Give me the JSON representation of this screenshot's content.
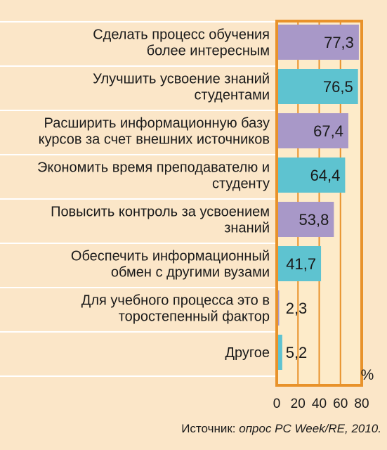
{
  "chart_data": {
    "type": "bar",
    "orientation": "horizontal",
    "categories": [
      [
        "Сделать процесс обучения",
        "более интересным"
      ],
      [
        "Улучшить усвоение знаний",
        "студентами"
      ],
      [
        "Расширить информационную базу",
        "курсов за счет внешних источников"
      ],
      [
        "Экономить время преподавателю и",
        "студенту"
      ],
      [
        "Повысить контроль за усвоением",
        "знаний"
      ],
      [
        "Обеспечить информационный",
        "обмен с другими вузами"
      ],
      [
        "Для учебного процесса это в",
        "торостепенный фактор"
      ],
      [
        "Другое"
      ]
    ],
    "values": [
      77.3,
      76.5,
      67.4,
      64.4,
      53.8,
      41.7,
      2.3,
      5.2
    ],
    "value_labels": [
      "77,3",
      "76,5",
      "67,4",
      "64,4",
      "53,8",
      "41,7",
      "2,3",
      "5,2"
    ],
    "xlim": [
      0,
      80
    ],
    "xticks": [
      "0",
      "20",
      "40",
      "60",
      "80"
    ],
    "unit": "%",
    "grid": true,
    "colors": {
      "purple": "#a898c8",
      "teal": "#5ec3d0",
      "frame": "#e8922a",
      "plot_bg": "#fdebc9",
      "page_bg": "#fbe6c8",
      "row_line": "#ffffff"
    }
  },
  "source": {
    "prefix": "Источник: ",
    "text": "опрос PC Week/RE, 2010."
  }
}
